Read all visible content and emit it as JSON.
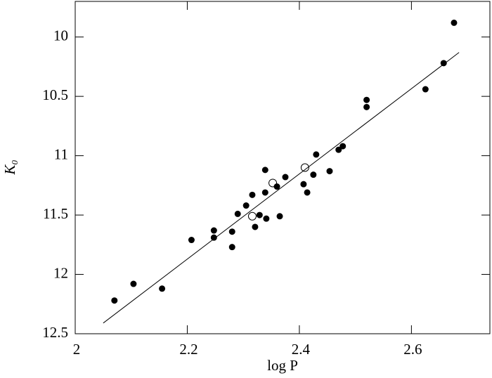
{
  "chart_data": {
    "type": "scatter",
    "xlabel": "log P",
    "ylabel": "K₀",
    "xlim": [
      2,
      2.74
    ],
    "xticks": [
      2,
      2.2,
      2.4,
      2.6
    ],
    "ylim": [
      12.5,
      9.7
    ],
    "yticks": [
      10,
      10.5,
      11,
      11.5,
      12,
      12.5
    ],
    "color": "#000000",
    "series": [
      {
        "marker": "filled",
        "x": [
          2.07,
          2.104,
          2.155,
          2.2075,
          2.2475,
          2.2475,
          2.28,
          2.28,
          2.29,
          2.305,
          2.316,
          2.321,
          2.329,
          2.339,
          2.339,
          2.341,
          2.36,
          2.365,
          2.375,
          2.4075,
          2.414,
          2.425,
          2.43,
          2.454,
          2.47,
          2.4775,
          2.52,
          2.52,
          2.625,
          2.6575,
          2.676
        ],
        "y": [
          12.22,
          12.08,
          12.12,
          11.71,
          11.63,
          11.69,
          11.64,
          11.77,
          11.49,
          11.42,
          11.33,
          11.6,
          11.5,
          11.12,
          11.31,
          11.53,
          11.26,
          11.51,
          11.18,
          11.24,
          11.31,
          11.16,
          10.99,
          11.13,
          10.95,
          10.92,
          10.53,
          10.59,
          10.44,
          10.22,
          9.88
        ]
      },
      {
        "marker": "open",
        "x": [
          2.316,
          2.3525,
          2.41
        ],
        "y": [
          11.51,
          11.23,
          11.1
        ]
      }
    ],
    "fit_line": {
      "x": [
        2.05,
        2.685
      ],
      "y": [
        12.41,
        10.13
      ]
    }
  }
}
